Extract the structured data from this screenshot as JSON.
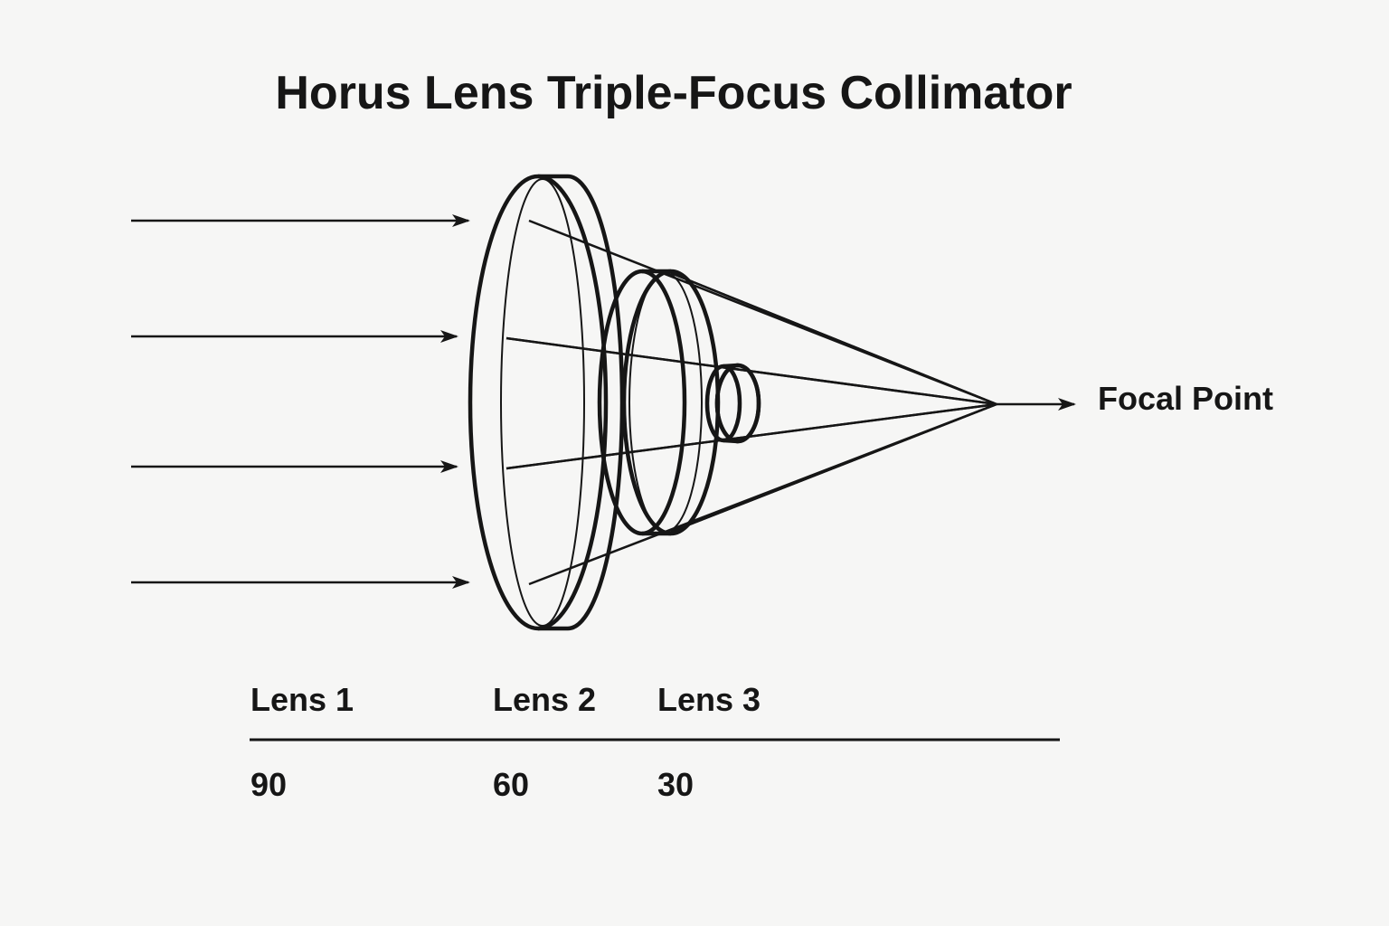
{
  "diagram": {
    "title": "Horus Lens Triple-Focus Collimator",
    "focal_label": "Focal Point",
    "lenses": [
      {
        "label": "Lens 1",
        "value": "90"
      },
      {
        "label": "Lens 2",
        "value": "60"
      },
      {
        "label": "Lens 3",
        "value": "30"
      }
    ],
    "colors": {
      "ink": "#161616",
      "background": "#f6f6f5"
    }
  }
}
